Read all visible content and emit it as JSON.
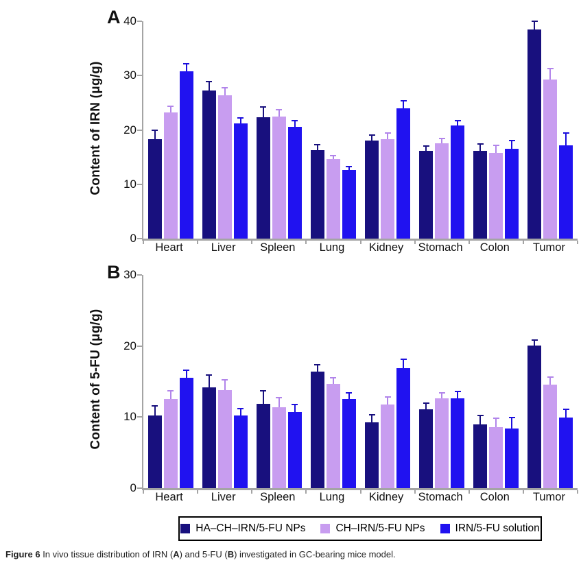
{
  "chart_data": [
    {
      "type": "bar",
      "panel_label": "A",
      "ylabel": "Content of IRN (μg/g)",
      "xlabel": "",
      "ylim": [
        0,
        40
      ],
      "yticks": [
        0,
        10,
        20,
        30,
        40
      ],
      "grid": false,
      "legend_position": "bottom-outside-shared",
      "categories": [
        "Heart",
        "Liver",
        "Spleen",
        "Lung",
        "Kidney",
        "Stomach",
        "Colon",
        "Tumor"
      ],
      "series": [
        {
          "name": "HA–CH–IRN/5-FU NPs",
          "color": "#18107e",
          "error_color": "#18107e",
          "values": [
            18.3,
            27.2,
            22.3,
            16.3,
            18.0,
            16.1,
            16.1,
            38.5
          ],
          "errors": [
            1.8,
            1.8,
            2.0,
            1.1,
            1.2,
            1.1,
            1.4,
            1.6
          ]
        },
        {
          "name": "CH–IRN/5-FU NPs",
          "color": "#c89df0",
          "error_color": "#b184ea",
          "values": [
            23.2,
            26.4,
            22.4,
            14.6,
            18.3,
            17.6,
            15.8,
            29.3
          ],
          "errors": [
            1.3,
            1.5,
            1.5,
            0.8,
            1.3,
            1.0,
            1.5,
            2.1
          ]
        },
        {
          "name": "IRN/5-FU solution",
          "color": "#2012f0",
          "error_color": "#1b0edd",
          "values": [
            30.8,
            21.2,
            20.6,
            12.6,
            24.0,
            20.8,
            16.5,
            17.2
          ],
          "errors": [
            1.5,
            1.2,
            1.2,
            0.8,
            1.5,
            1.0,
            1.7,
            2.3
          ]
        }
      ]
    },
    {
      "type": "bar",
      "panel_label": "B",
      "ylabel": "Content of 5-FU (μg/g)",
      "xlabel": "",
      "ylim": [
        0,
        30
      ],
      "yticks": [
        0,
        10,
        20,
        30
      ],
      "grid": false,
      "legend_position": "bottom-outside-shared",
      "categories": [
        "Heart",
        "Liver",
        "Spleen",
        "Lung",
        "Kidney",
        "Stomach",
        "Colon",
        "Tumor"
      ],
      "series": [
        {
          "name": "HA–CH–IRN/5-FU NPs",
          "color": "#18107e",
          "error_color": "#18107e",
          "values": [
            10.2,
            14.2,
            11.9,
            16.4,
            9.3,
            11.1,
            9.0,
            20.1
          ],
          "errors": [
            1.5,
            1.8,
            1.9,
            1.1,
            1.1,
            1.0,
            1.3,
            0.8
          ]
        },
        {
          "name": "CH–IRN/5-FU NPs",
          "color": "#c89df0",
          "error_color": "#b184ea",
          "values": [
            12.5,
            13.8,
            11.4,
            14.7,
            11.8,
            12.6,
            8.6,
            14.6
          ],
          "errors": [
            1.3,
            1.5,
            1.4,
            0.9,
            1.1,
            0.9,
            1.3,
            1.1
          ]
        },
        {
          "name": "IRN/5-FU solution",
          "color": "#2012f0",
          "error_color": "#1b0edd",
          "values": [
            15.5,
            10.2,
            10.7,
            12.5,
            16.9,
            12.6,
            8.4,
            9.9
          ],
          "errors": [
            1.2,
            1.1,
            1.2,
            1.0,
            1.3,
            1.1,
            1.6,
            1.3
          ]
        }
      ]
    }
  ],
  "caption": {
    "segments": [
      {
        "text": "Figure 6 ",
        "bold": true
      },
      {
        "text": "In vivo tissue distribution of IRN (",
        "bold": false
      },
      {
        "text": "A",
        "bold": true
      },
      {
        "text": ") and 5-FU (",
        "bold": false
      },
      {
        "text": "B",
        "bold": true
      },
      {
        "text": ") investigated in GC-bearing mice model.",
        "bold": false
      }
    ]
  }
}
